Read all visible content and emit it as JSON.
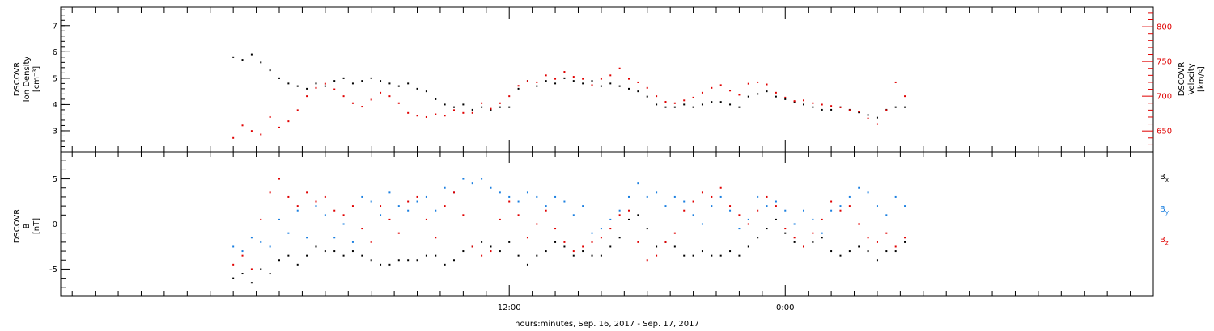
{
  "chart_data": [
    {
      "type": "scatter",
      "panel": "top",
      "ylabel": [
        "DSCOVR",
        "Ion Density",
        "[cm⁻³]"
      ],
      "ylabel_color": "#000000",
      "ylim": [
        2.2,
        7.7
      ],
      "yticks": [
        3,
        4,
        5,
        6,
        7
      ],
      "y2label": [
        "DSCOVR",
        "Velocity",
        "[km/s]"
      ],
      "y2label_color": "#e00000",
      "y2lim": [
        620,
        828
      ],
      "y2ticks": [
        650,
        700,
        750,
        800
      ],
      "series": [
        {
          "key": "density",
          "axis": "left",
          "color": "#000000",
          "x": [
            0.0,
            0.4,
            0.8,
            1.2,
            1.6,
            2.0,
            2.4,
            2.8,
            3.2,
            3.6,
            4.0,
            4.4,
            4.8,
            5.2,
            5.6,
            6.0,
            6.4,
            6.8,
            7.2,
            7.6,
            8.0,
            8.4,
            8.8,
            9.2,
            9.6,
            10.0,
            10.4,
            10.8,
            11.2,
            11.6,
            12.0,
            12.4,
            12.8,
            13.2,
            13.6,
            14.0,
            14.4,
            14.8,
            15.2,
            15.6,
            16.0,
            16.4,
            16.8,
            17.2,
            17.6,
            18.0,
            18.4,
            18.8,
            19.2,
            19.6,
            20.0,
            20.4,
            20.8,
            21.2,
            21.6,
            22.0,
            22.4,
            22.8,
            23.2,
            23.6,
            24.0,
            24.4,
            24.8,
            25.2,
            25.6,
            26.0,
            26.4,
            26.8,
            27.2,
            27.6,
            28.0,
            28.4,
            28.8,
            29.2
          ],
          "y": [
            5.8,
            5.7,
            5.9,
            5.6,
            5.3,
            5.0,
            4.8,
            4.7,
            4.6,
            4.8,
            4.7,
            4.9,
            5.0,
            4.8,
            4.9,
            5.0,
            4.9,
            4.8,
            4.7,
            4.8,
            4.6,
            4.5,
            4.2,
            4.0,
            3.9,
            4.0,
            3.8,
            3.9,
            3.8,
            3.9,
            3.9,
            4.6,
            4.9,
            4.7,
            4.9,
            4.8,
            5.0,
            4.9,
            4.8,
            4.9,
            4.7,
            4.8,
            4.7,
            4.6,
            4.5,
            4.3,
            4.0,
            3.9,
            3.9,
            4.0,
            3.9,
            4.0,
            4.1,
            4.1,
            4.0,
            3.9,
            4.3,
            4.4,
            4.5,
            4.3,
            4.2,
            4.1,
            4.0,
            3.9,
            3.8,
            3.8,
            3.9,
            3.8,
            3.7,
            3.6,
            3.5,
            3.8,
            3.9,
            3.9
          ]
        },
        {
          "key": "velocity",
          "axis": "right",
          "color": "#e00000",
          "x": [
            0.0,
            0.4,
            0.8,
            1.2,
            1.6,
            2.0,
            2.4,
            2.8,
            3.2,
            3.6,
            4.0,
            4.4,
            4.8,
            5.2,
            5.6,
            6.0,
            6.4,
            6.8,
            7.2,
            7.6,
            8.0,
            8.4,
            8.8,
            9.2,
            9.6,
            10.0,
            10.4,
            10.8,
            11.2,
            11.6,
            12.0,
            12.4,
            12.8,
            13.2,
            13.6,
            14.0,
            14.4,
            14.8,
            15.2,
            15.6,
            16.0,
            16.4,
            16.8,
            17.2,
            17.6,
            18.0,
            18.4,
            18.8,
            19.2,
            19.6,
            20.0,
            20.4,
            20.8,
            21.2,
            21.6,
            22.0,
            22.4,
            22.8,
            23.2,
            23.6,
            24.0,
            24.4,
            24.8,
            25.2,
            25.6,
            26.0,
            26.4,
            26.8,
            27.2,
            27.6,
            28.0,
            28.4,
            28.8,
            29.2
          ],
          "y": [
            640,
            658,
            650,
            645,
            670,
            655,
            664,
            680,
            700,
            712,
            718,
            710,
            700,
            690,
            685,
            695,
            705,
            700,
            690,
            676,
            672,
            670,
            674,
            672,
            680,
            676,
            676,
            690,
            682,
            690,
            700,
            715,
            722,
            720,
            730,
            725,
            735,
            728,
            725,
            716,
            725,
            730,
            740,
            725,
            720,
            712,
            700,
            692,
            690,
            694,
            698,
            705,
            712,
            716,
            708,
            702,
            718,
            720,
            717,
            705,
            698,
            693,
            694,
            690,
            688,
            686,
            684,
            680,
            678,
            668,
            660,
            680,
            720,
            700
          ]
        }
      ]
    },
    {
      "type": "scatter",
      "panel": "bottom",
      "ylabel": [
        "DSCOVR",
        "B",
        "[nT]"
      ],
      "ylabel_color": "#000000",
      "ylim": [
        -8.0,
        8.0
      ],
      "yticks": [
        -5,
        0,
        5
      ],
      "zero_line": true,
      "legend": [
        {
          "label": "Bx",
          "base": "B",
          "sub": "x",
          "color": "#000000"
        },
        {
          "label": "By",
          "base": "B",
          "sub": "y",
          "color": "#1a7fe0"
        },
        {
          "label": "Bz",
          "base": "B",
          "sub": "z",
          "color": "#e00000"
        }
      ],
      "series": [
        {
          "key": "Bx",
          "color": "#000000",
          "x": [
            0.0,
            0.4,
            0.8,
            1.2,
            1.6,
            2.0,
            2.4,
            2.8,
            3.2,
            3.6,
            4.0,
            4.4,
            4.8,
            5.2,
            5.6,
            6.0,
            6.4,
            6.8,
            7.2,
            7.6,
            8.0,
            8.4,
            8.8,
            9.2,
            9.6,
            10.0,
            10.4,
            10.8,
            11.2,
            11.6,
            12.0,
            12.4,
            12.8,
            13.2,
            13.6,
            14.0,
            14.4,
            14.8,
            15.2,
            15.6,
            16.0,
            16.4,
            16.8,
            17.2,
            17.6,
            18.0,
            18.4,
            18.8,
            19.2,
            19.6,
            20.0,
            20.4,
            20.8,
            21.2,
            21.6,
            22.0,
            22.4,
            22.8,
            23.2,
            23.6,
            24.0,
            24.4,
            24.8,
            25.2,
            25.6,
            26.0,
            26.4,
            26.8,
            27.2,
            27.6,
            28.0,
            28.4,
            28.8,
            29.2
          ],
          "y": [
            -6.0,
            -5.5,
            -6.5,
            -5.0,
            -5.5,
            -4.0,
            -3.5,
            -4.5,
            -3.5,
            -2.5,
            -3.0,
            -3.0,
            -3.5,
            -3.0,
            -3.5,
            -4.0,
            -4.5,
            -4.5,
            -4.0,
            -4.0,
            -4.0,
            -3.5,
            -3.5,
            -4.5,
            -4.0,
            -3.0,
            -2.5,
            -2.0,
            -2.5,
            -3.0,
            -2.0,
            -3.5,
            -4.5,
            -3.5,
            -3.0,
            -2.0,
            -2.5,
            -3.5,
            -3.0,
            -3.5,
            -3.5,
            -2.5,
            -1.5,
            0.5,
            1.0,
            -0.5,
            -2.5,
            -2.0,
            -2.5,
            -3.5,
            -3.5,
            -3.0,
            -3.5,
            -3.5,
            -3.0,
            -3.5,
            -2.5,
            -1.5,
            -0.5,
            0.5,
            -1.0,
            -2.0,
            -2.5,
            -2.0,
            -1.5,
            -3.0,
            -3.5,
            -3.0,
            -2.5,
            -3.0,
            -4.0,
            -3.0,
            -3.0,
            -2.0
          ]
        },
        {
          "key": "By",
          "color": "#1a7fe0",
          "x": [
            0.0,
            0.4,
            0.8,
            1.2,
            1.6,
            2.0,
            2.4,
            2.8,
            3.2,
            3.6,
            4.0,
            4.4,
            4.8,
            5.2,
            5.6,
            6.0,
            6.4,
            6.8,
            7.2,
            7.6,
            8.0,
            8.4,
            8.8,
            9.2,
            9.6,
            10.0,
            10.4,
            10.8,
            11.2,
            11.6,
            12.0,
            12.4,
            12.8,
            13.2,
            13.6,
            14.0,
            14.4,
            14.8,
            15.2,
            15.6,
            16.0,
            16.4,
            16.8,
            17.2,
            17.6,
            18.0,
            18.4,
            18.8,
            19.2,
            19.6,
            20.0,
            20.4,
            20.8,
            21.2,
            21.6,
            22.0,
            22.4,
            22.8,
            23.2,
            23.6,
            24.0,
            24.4,
            24.8,
            25.2,
            25.6,
            26.0,
            26.4,
            26.8,
            27.2,
            27.6,
            28.0,
            28.4,
            28.8,
            29.2
          ],
          "y": [
            -2.5,
            -3.0,
            -1.5,
            -2.0,
            -2.5,
            0.5,
            -1.0,
            1.5,
            -1.5,
            2.0,
            1.0,
            -1.5,
            0.0,
            -2.0,
            3.0,
            2.5,
            1.0,
            3.5,
            2.0,
            1.5,
            2.5,
            3.0,
            1.5,
            4.0,
            3.5,
            5.0,
            4.5,
            5.0,
            4.0,
            3.5,
            3.0,
            2.5,
            3.5,
            3.0,
            2.0,
            3.0,
            2.5,
            1.0,
            2.0,
            -1.0,
            -0.5,
            0.5,
            1.5,
            3.0,
            4.5,
            3.0,
            3.5,
            2.0,
            3.0,
            2.5,
            1.0,
            0.0,
            2.0,
            3.0,
            1.5,
            -0.5,
            0.5,
            3.0,
            2.0,
            2.5,
            1.5,
            0.0,
            1.5,
            0.5,
            -1.0,
            1.5,
            2.0,
            3.0,
            4.0,
            3.5,
            2.0,
            1.0,
            3.0,
            2.0
          ]
        },
        {
          "key": "Bz",
          "color": "#e00000",
          "x": [
            0.0,
            0.4,
            0.8,
            1.2,
            1.6,
            2.0,
            2.4,
            2.8,
            3.2,
            3.6,
            4.0,
            4.4,
            4.8,
            5.2,
            5.6,
            6.0,
            6.4,
            6.8,
            7.2,
            7.6,
            8.0,
            8.4,
            8.8,
            9.2,
            9.6,
            10.0,
            10.4,
            10.8,
            11.2,
            11.6,
            12.0,
            12.4,
            12.8,
            13.2,
            13.6,
            14.0,
            14.4,
            14.8,
            15.2,
            15.6,
            16.0,
            16.4,
            16.8,
            17.2,
            17.6,
            18.0,
            18.4,
            18.8,
            19.2,
            19.6,
            20.0,
            20.4,
            20.8,
            21.2,
            21.6,
            22.0,
            22.4,
            22.8,
            23.2,
            23.6,
            24.0,
            24.4,
            24.8,
            25.2,
            25.6,
            26.0,
            26.4,
            26.8,
            27.2,
            27.6,
            28.0,
            28.4,
            28.8,
            29.2
          ],
          "y": [
            -4.5,
            -3.5,
            -5.0,
            0.5,
            3.5,
            5.0,
            3.0,
            2.0,
            3.5,
            2.5,
            3.0,
            1.5,
            1.0,
            2.0,
            -0.5,
            -2.0,
            2.0,
            0.5,
            -1.0,
            2.5,
            3.0,
            0.5,
            -1.5,
            2.0,
            3.5,
            1.0,
            -2.5,
            -3.5,
            -3.0,
            0.5,
            2.5,
            1.0,
            -1.5,
            0.0,
            1.5,
            -0.5,
            -2.0,
            -3.0,
            -2.5,
            -2.0,
            -1.5,
            -0.5,
            1.0,
            1.5,
            -2.0,
            -4.0,
            -3.5,
            -2.0,
            -1.0,
            1.5,
            2.5,
            3.5,
            3.0,
            4.0,
            2.0,
            1.0,
            0.0,
            1.5,
            3.0,
            2.0,
            -0.5,
            -1.5,
            -2.5,
            -1.0,
            0.5,
            2.5,
            1.5,
            2.0,
            0.0,
            -1.5,
            -2.0,
            -1.0,
            -2.5,
            -1.5
          ]
        }
      ]
    }
  ],
  "axes": {
    "x_range_hours": [
      -7.5,
      40
    ],
    "x_minor_tick_step_hours": 1,
    "x_major_ticks": [
      {
        "hour": 12,
        "label": "12:00"
      },
      {
        "hour": 24,
        "label": "0:00"
      }
    ],
    "xlabel": "hours:minutes, Sep. 16, 2017 - Sep. 17, 2017"
  }
}
